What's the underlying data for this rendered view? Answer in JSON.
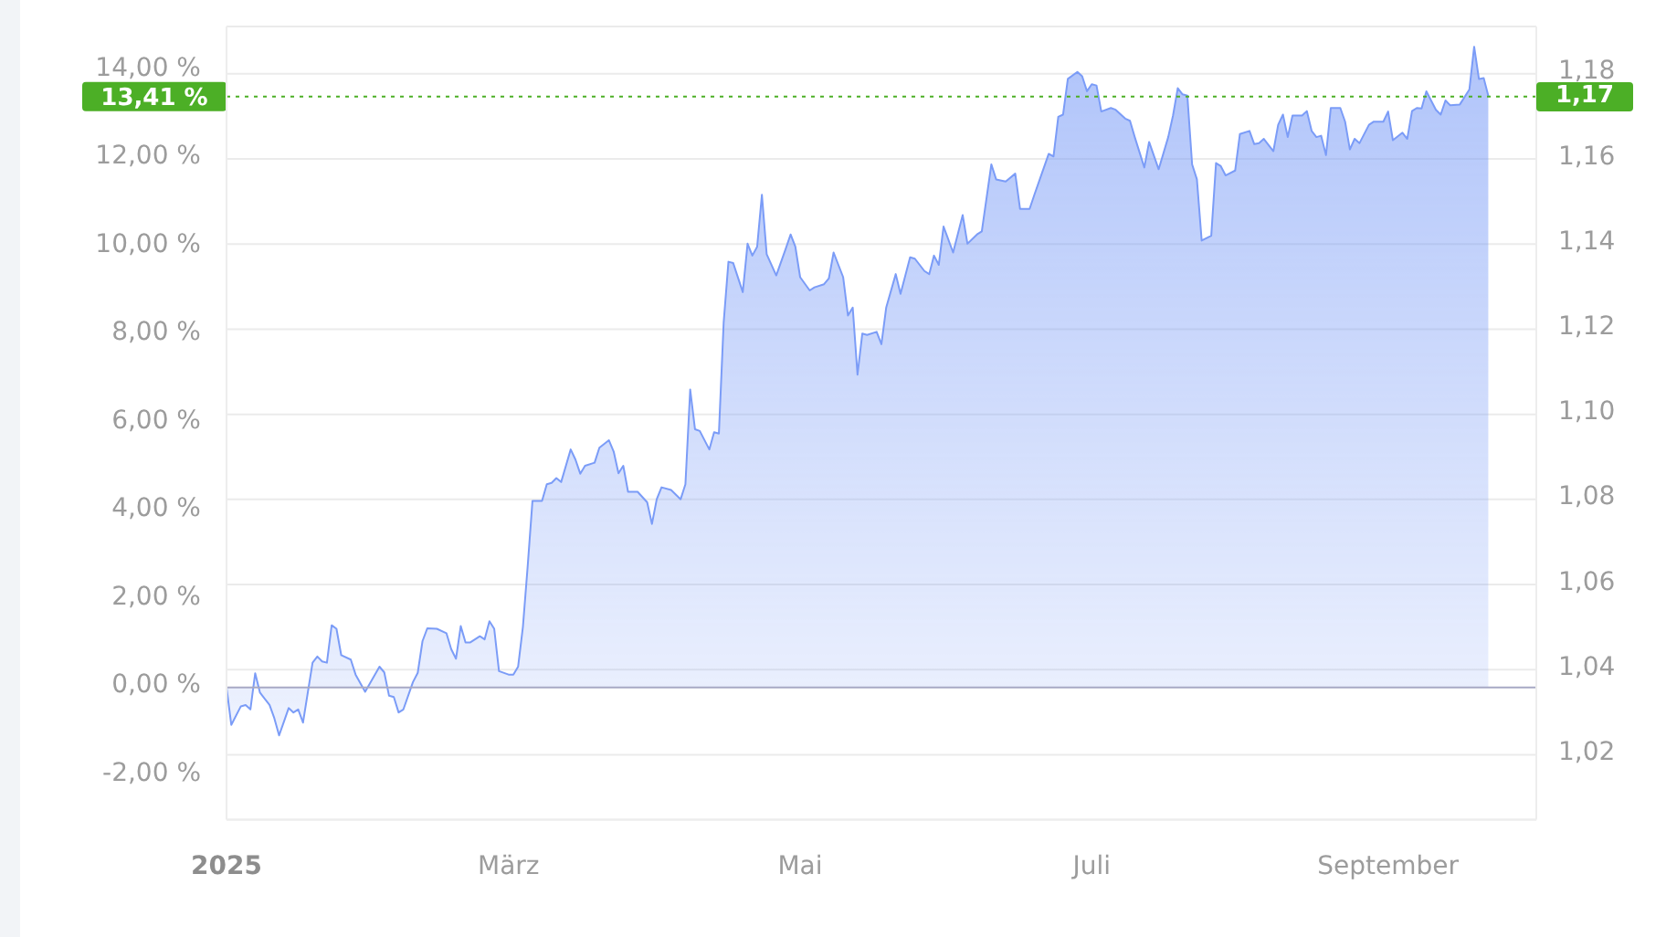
{
  "chart_data": {
    "type": "area",
    "color": "#7b9cf7",
    "x": [
      "2025-01-01",
      "2025-01-02",
      "2025-01-04",
      "2025-01-05",
      "2025-01-06",
      "2025-01-07",
      "2025-01-08",
      "2025-01-10",
      "2025-01-11",
      "2025-01-12",
      "2025-01-13",
      "2025-01-14",
      "2025-01-15",
      "2025-01-16",
      "2025-01-17",
      "2025-01-19",
      "2025-01-20",
      "2025-01-21",
      "2025-01-22",
      "2025-01-23",
      "2025-01-24",
      "2025-01-25",
      "2025-01-27",
      "2025-01-28",
      "2025-01-30",
      "2025-02-02",
      "2025-02-03",
      "2025-02-04",
      "2025-02-05",
      "2025-02-06",
      "2025-02-07",
      "2025-02-09",
      "2025-02-10",
      "2025-02-11",
      "2025-02-12",
      "2025-02-14",
      "2025-02-16",
      "2025-02-17",
      "2025-02-18",
      "2025-02-19",
      "2025-02-20",
      "2025-02-21",
      "2025-02-23",
      "2025-02-24",
      "2025-02-25",
      "2025-02-26",
      "2025-02-27",
      "2025-03-01",
      "2025-03-02",
      "2025-03-03",
      "2025-03-04",
      "2025-03-05",
      "2025-03-06",
      "2025-03-08",
      "2025-03-09",
      "2025-03-10",
      "2025-03-11",
      "2025-03-12",
      "2025-03-14",
      "2025-03-15",
      "2025-03-16",
      "2025-03-17",
      "2025-03-19",
      "2025-03-20",
      "2025-03-22",
      "2025-03-23",
      "2025-03-24",
      "2025-03-25",
      "2025-03-26",
      "2025-03-28",
      "2025-03-30",
      "2025-03-31",
      "2025-04-01",
      "2025-04-02",
      "2025-04-04",
      "2025-04-06",
      "2025-04-07",
      "2025-04-08",
      "2025-04-09",
      "2025-04-10",
      "2025-04-12",
      "2025-04-13",
      "2025-04-14",
      "2025-04-15",
      "2025-04-16",
      "2025-04-17",
      "2025-04-19",
      "2025-04-20",
      "2025-04-21",
      "2025-04-22",
      "2025-04-23",
      "2025-04-24",
      "2025-04-26",
      "2025-04-28",
      "2025-04-29",
      "2025-04-30",
      "2025-05-01",
      "2025-05-03",
      "2025-05-04",
      "2025-05-06",
      "2025-05-07",
      "2025-05-08",
      "2025-05-10",
      "2025-05-11",
      "2025-05-12",
      "2025-05-13",
      "2025-05-14",
      "2025-05-15",
      "2025-05-17",
      "2025-05-18",
      "2025-05-19",
      "2025-05-21",
      "2025-05-22",
      "2025-05-24",
      "2025-05-25",
      "2025-05-27",
      "2025-05-28",
      "2025-05-29",
      "2025-05-30",
      "2025-05-31",
      "2025-06-02",
      "2025-06-04",
      "2025-06-05",
      "2025-06-07",
      "2025-06-08",
      "2025-06-10",
      "2025-06-11",
      "2025-06-13",
      "2025-06-15",
      "2025-06-16",
      "2025-06-18",
      "2025-06-19",
      "2025-06-21",
      "2025-06-22",
      "2025-06-23",
      "2025-06-24",
      "2025-06-25",
      "2025-06-26",
      "2025-06-28",
      "2025-06-29",
      "2025-06-30",
      "2025-07-01",
      "2025-07-02",
      "2025-07-03",
      "2025-07-05",
      "2025-07-06",
      "2025-07-08",
      "2025-07-09",
      "2025-07-10",
      "2025-07-12",
      "2025-07-13",
      "2025-07-15",
      "2025-07-17",
      "2025-07-18",
      "2025-07-19",
      "2025-07-20",
      "2025-07-21",
      "2025-07-22",
      "2025-07-23",
      "2025-07-24",
      "2025-07-26",
      "2025-07-27",
      "2025-07-28",
      "2025-07-29",
      "2025-07-31",
      "2025-08-01",
      "2025-08-03",
      "2025-08-04",
      "2025-08-05",
      "2025-08-06",
      "2025-08-08",
      "2025-08-09",
      "2025-08-10",
      "2025-08-11",
      "2025-08-12",
      "2025-08-14",
      "2025-08-15",
      "2025-08-16",
      "2025-08-17",
      "2025-08-18",
      "2025-08-19",
      "2025-08-20",
      "2025-08-22",
      "2025-08-23",
      "2025-08-24",
      "2025-08-25",
      "2025-08-26",
      "2025-08-28",
      "2025-08-29",
      "2025-08-31",
      "2025-09-01",
      "2025-09-02",
      "2025-09-04",
      "2025-09-05",
      "2025-09-06",
      "2025-09-07",
      "2025-09-08",
      "2025-09-09",
      "2025-09-11",
      "2025-09-12",
      "2025-09-13",
      "2025-09-14",
      "2025-09-16",
      "2025-09-18",
      "2025-09-19",
      "2025-09-20",
      "2025-09-21",
      "2025-09-22"
    ],
    "values": [
      0,
      -0.85,
      -0.43,
      -0.4,
      -0.5,
      0.32,
      -0.12,
      -0.4,
      -0.7,
      -1.09,
      -0.78,
      -0.47,
      -0.57,
      -0.5,
      -0.8,
      0.56,
      0.7,
      0.59,
      0.56,
      1.41,
      1.33,
      0.73,
      0.63,
      0.29,
      -0.1,
      0.47,
      0.34,
      -0.19,
      -0.22,
      -0.57,
      -0.5,
      0.12,
      0.33,
      1.05,
      1.34,
      1.33,
      1.23,
      0.87,
      0.65,
      1.39,
      1.02,
      1.02,
      1.16,
      1.09,
      1.5,
      1.33,
      0.37,
      0.29,
      0.29,
      0.47,
      1.37,
      2.75,
      4.23,
      4.23,
      4.61,
      4.64,
      4.75,
      4.66,
      5.4,
      5.17,
      4.85,
      5.03,
      5.1,
      5.44,
      5.61,
      5.35,
      4.86,
      5.03,
      4.44,
      4.44,
      4.2,
      3.71,
      4.27,
      4.54,
      4.48,
      4.27,
      4.61,
      6.76,
      5.86,
      5.82,
      5.4,
      5.79,
      5.76,
      8.28,
      9.66,
      9.63,
      8.97,
      10.07,
      9.8,
      10,
      11.18,
      9.83,
      9.35,
      9.96,
      10.28,
      10,
      9.31,
      9.01,
      9.08,
      9.15,
      9.28,
      9.87,
      9.31,
      8.44,
      8.62,
      7.1,
      8.03,
      8,
      8.07,
      7.79,
      8.62,
      9.38,
      8.93,
      9.76,
      9.73,
      9.45,
      9.38,
      9.8,
      9.59,
      10.46,
      9.87,
      10.72,
      10.07,
      10.28,
      10.35,
      11.87,
      11.53,
      11.48,
      11.66,
      10.86,
      10.86,
      11.18,
      11.8,
      12.11,
      12.05,
      12.95,
      13,
      13.81,
      13.97,
      13.87,
      13.53,
      13.69,
      13.66,
      13.07,
      13.15,
      13.11,
      12.91,
      12.86,
      12.49,
      11.8,
      12.38,
      11.76,
      12.49,
      12.98,
      13.6,
      13.46,
      13.43,
      11.87,
      11.53,
      10.14,
      10.25,
      11.9,
      11.83,
      11.62,
      11.73,
      12.56,
      12.63,
      12.33,
      12.35,
      12.45,
      12.17,
      12.77,
      13,
      12.49,
      12.98,
      12.98,
      13.08,
      12.63,
      12.49,
      12.52,
      12.08,
      13.15,
      13.15,
      12.84,
      12.21,
      12.45,
      12.35,
      12.77,
      12.84,
      12.84,
      13.07,
      12.42,
      12.59,
      12.45,
      13.08,
      13.15,
      13.14,
      13.53,
      13.11,
      13,
      13.32,
      13.21,
      13.23,
      13.57,
      14.54,
      13.81,
      13.83,
      13.41
    ],
    "xlim": [
      "2025-01-01",
      "2025-10-02"
    ],
    "xticks": [
      {
        "value": "2025-01-01",
        "label": "2025"
      },
      {
        "value": "2025-03-01",
        "label": "März"
      },
      {
        "value": "2025-05-01",
        "label": "Mai"
      },
      {
        "value": "2025-07-01",
        "label": "Juli"
      },
      {
        "value": "2025-09-01",
        "label": "September"
      }
    ],
    "ylim": [
      -3,
      15
    ],
    "yticks": [
      {
        "value": 14,
        "label": "14,00 %"
      },
      {
        "value": 12,
        "label": "12,00 %"
      },
      {
        "value": 10,
        "label": "10,00 %"
      },
      {
        "value": 8,
        "label": "8,00 %"
      },
      {
        "value": 6,
        "label": "6,00 %"
      },
      {
        "value": 4,
        "label": "4,00 %"
      },
      {
        "value": 2,
        "label": "2,00 %"
      },
      {
        "value": 0,
        "label": "0,00 %"
      },
      {
        "value": -2,
        "label": "-2,00 %"
      }
    ],
    "y2lim": [
      1.0048,
      1.1911
    ],
    "y2ticks": [
      {
        "value": 1.18,
        "label": "1,18"
      },
      {
        "value": 1.16,
        "label": "1,16"
      },
      {
        "value": 1.14,
        "label": "1,14"
      },
      {
        "value": 1.12,
        "label": "1,12"
      },
      {
        "value": 1.1,
        "label": "1,10"
      },
      {
        "value": 1.08,
        "label": "1,08"
      },
      {
        "value": 1.06,
        "label": "1,06"
      },
      {
        "value": 1.04,
        "label": "1,04"
      },
      {
        "value": 1.02,
        "label": "1,02"
      }
    ],
    "grid": "y",
    "ref_lines": [
      {
        "axis": "y",
        "value": 0,
        "color": "#a7a9c4"
      },
      {
        "axis": "y",
        "value": 13.41,
        "label": "13,41 %",
        "color": "#4caf26",
        "line_style": "dotted"
      }
    ],
    "annotations": [
      "1,17"
    ]
  }
}
